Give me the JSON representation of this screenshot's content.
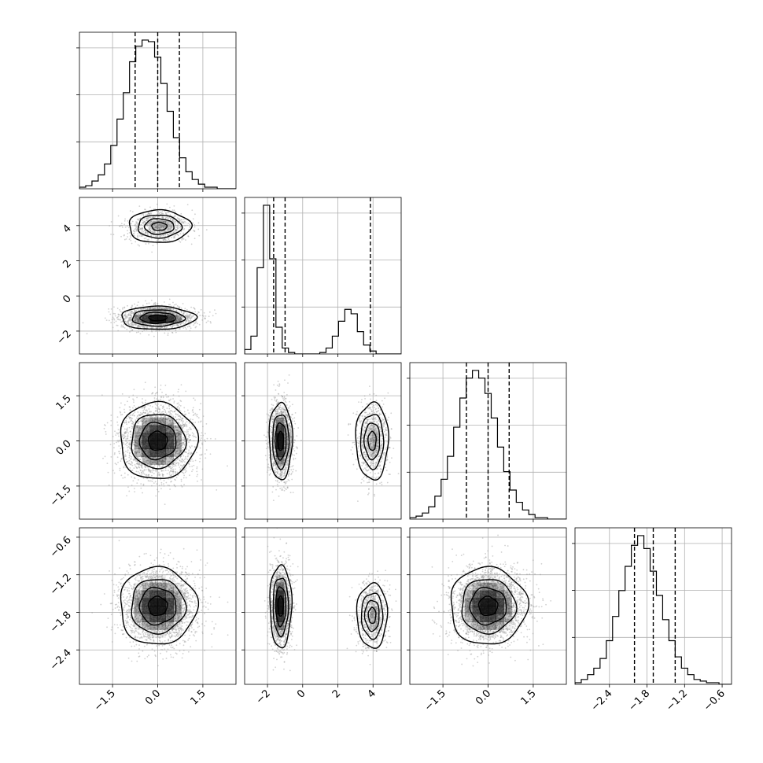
{
  "chart_data": {
    "type": "corner",
    "grid": true,
    "title": "",
    "variables": [
      {
        "label": "",
        "range": [
          -2.6,
          2.6
        ],
        "ticks": [
          -1.5,
          0.0,
          1.5
        ],
        "tick_labels": [
          "−1.5",
          "0.0",
          "1.5"
        ],
        "quantiles": [
          -0.75,
          0.0,
          0.72
        ]
      },
      {
        "label": "",
        "range": [
          -3.3,
          5.6
        ],
        "ticks": [
          -2,
          0,
          2,
          4
        ],
        "tick_labels": [
          "−2",
          "0",
          "2",
          "4"
        ],
        "quantiles": [
          -1.65,
          -1.0,
          3.85
        ]
      },
      {
        "label": "",
        "range": [
          -2.6,
          2.6
        ],
        "ticks": [
          -1.5,
          0.0,
          1.5
        ],
        "tick_labels": [
          "−1.5",
          "0.0",
          "1.5"
        ],
        "quantiles": [
          -0.72,
          0.0,
          0.7
        ]
      },
      {
        "label": "",
        "range": [
          -2.95,
          -0.45
        ],
        "ticks": [
          -2.4,
          -1.8,
          -1.2,
          -0.6
        ],
        "tick_labels": [
          "−2.4",
          "−1.8",
          "−1.2",
          "−0.6"
        ],
        "quantiles": [
          -2.0,
          -1.7,
          -1.35
        ]
      }
    ],
    "histograms": [
      {
        "variable": 0,
        "bins": [
          -2.6,
          2.6
        ],
        "counts": [
          1,
          2,
          5,
          9,
          16,
          28,
          45,
          62,
          82,
          92,
          96,
          95,
          85,
          68,
          50,
          33,
          20,
          11,
          6,
          3,
          1,
          1,
          0,
          0,
          0
        ]
      },
      {
        "variable": 1,
        "bins": [
          -3.3,
          5.6
        ],
        "counts": [
          3,
          12,
          58,
          100,
          64,
          18,
          4,
          1,
          0,
          0,
          0,
          0,
          1,
          4,
          12,
          22,
          30,
          27,
          15,
          6,
          2,
          0,
          0,
          0,
          0
        ]
      },
      {
        "variable": 2,
        "bins": [
          -2.6,
          2.6
        ],
        "counts": [
          1,
          2,
          4,
          8,
          15,
          26,
          41,
          60,
          79,
          92,
          97,
          92,
          82,
          66,
          47,
          31,
          19,
          11,
          6,
          3,
          1,
          1,
          0,
          0,
          0
        ]
      },
      {
        "variable": 3,
        "bins": [
          -2.95,
          -0.45
        ],
        "counts": [
          1,
          3,
          6,
          10,
          16,
          27,
          42,
          58,
          73,
          86,
          92,
          84,
          70,
          55,
          40,
          27,
          17,
          10,
          6,
          3,
          2,
          1,
          1,
          0,
          0
        ]
      }
    ],
    "joint_modes": [
      {
        "x_var": 0,
        "y_var": 1,
        "modes": [
          {
            "center": [
              0.0,
              -1.25
            ],
            "spread": [
              0.6,
              0.32
            ],
            "weight": 0.68
          },
          {
            "center": [
              0.05,
              3.95
            ],
            "spread": [
              0.5,
              0.45
            ],
            "weight": 0.32
          }
        ]
      },
      {
        "x_var": 0,
        "y_var": 2,
        "modes": [
          {
            "center": [
              0.0,
              0.0
            ],
            "spread": [
              0.62,
              0.62
            ],
            "weight": 1.0
          }
        ]
      },
      {
        "x_var": 1,
        "y_var": 2,
        "modes": [
          {
            "center": [
              -1.25,
              0.0
            ],
            "spread": [
              0.32,
              0.62
            ],
            "weight": 0.68
          },
          {
            "center": [
              3.95,
              0.0
            ],
            "spread": [
              0.45,
              0.62
            ],
            "weight": 0.32
          }
        ]
      },
      {
        "x_var": 0,
        "y_var": 3,
        "modes": [
          {
            "center": [
              0.0,
              -1.7
            ],
            "spread": [
              0.62,
              0.3
            ],
            "weight": 1.0
          }
        ]
      },
      {
        "x_var": 1,
        "y_var": 3,
        "modes": [
          {
            "center": [
              -1.25,
              -1.7
            ],
            "spread": [
              0.3,
              0.32
            ],
            "weight": 0.68
          },
          {
            "center": [
              3.95,
              -1.85
            ],
            "spread": [
              0.42,
              0.25
            ],
            "weight": 0.32
          }
        ]
      },
      {
        "x_var": 2,
        "y_var": 3,
        "modes": [
          {
            "center": [
              0.0,
              -1.7
            ],
            "spread": [
              0.62,
              0.3
            ],
            "weight": 1.0
          }
        ]
      }
    ],
    "contour_levels": [
      0.12,
      0.35,
      0.62,
      0.88
    ],
    "colors": {
      "line": "#000000",
      "grid": "#b0b0b0",
      "scatter": "#9a9a9a",
      "density": "#000000"
    }
  }
}
